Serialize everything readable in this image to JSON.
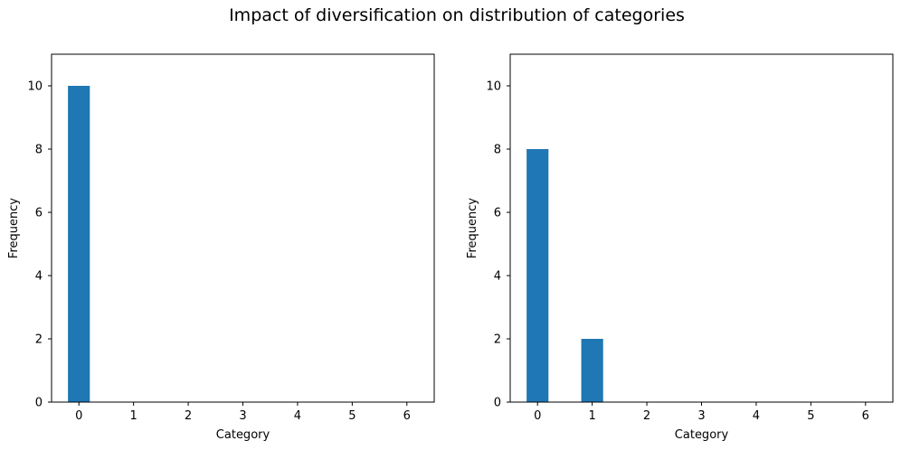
{
  "figure": {
    "title": "Impact of diversification on distribution of categories"
  },
  "colors": {
    "bar": "#1f77b4",
    "axis": "#000000",
    "background": "#ffffff"
  },
  "chart_data": [
    {
      "type": "bar",
      "title": "",
      "xlabel": "Category",
      "ylabel": "Frequency",
      "x": [
        0,
        1,
        2,
        3,
        4,
        5,
        6
      ],
      "values": [
        10,
        0,
        0,
        0,
        0,
        0,
        0
      ],
      "bar_width": 0.4,
      "xlim": [
        -0.5,
        6.5
      ],
      "ylim": [
        0,
        11
      ],
      "xticks": [
        0,
        1,
        2,
        3,
        4,
        5,
        6
      ],
      "yticks": [
        0,
        2,
        4,
        6,
        8,
        10
      ],
      "grid": false
    },
    {
      "type": "bar",
      "title": "",
      "xlabel": "Category",
      "ylabel": "Frequency",
      "x": [
        0,
        1,
        2,
        3,
        4,
        5,
        6
      ],
      "values": [
        8,
        2,
        0,
        0,
        0,
        0,
        0
      ],
      "bar_width": 0.4,
      "xlim": [
        -0.5,
        6.5
      ],
      "ylim": [
        0,
        11
      ],
      "xticks": [
        0,
        1,
        2,
        3,
        4,
        5,
        6
      ],
      "yticks": [
        0,
        2,
        4,
        6,
        8,
        10
      ],
      "grid": false
    }
  ]
}
